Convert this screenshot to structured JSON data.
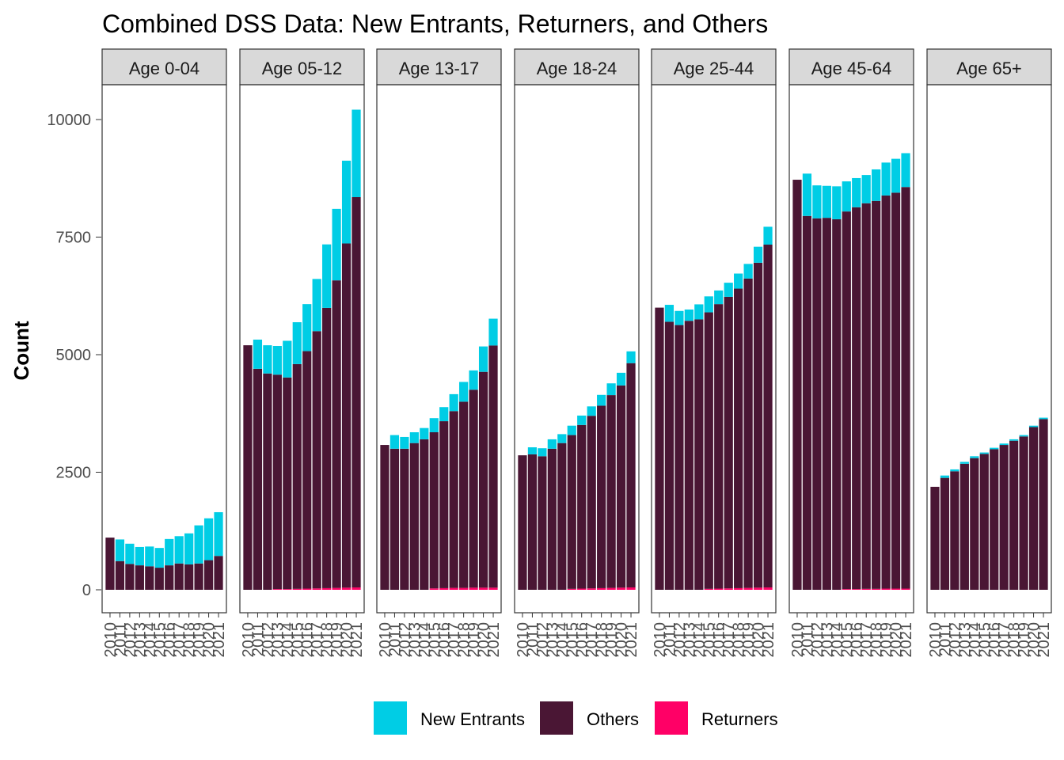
{
  "chart_data": {
    "type": "bar",
    "stacked": true,
    "title": "Combined DSS Data: New Entrants, Returners, and Others",
    "ylabel": "Count",
    "xlabel": "",
    "ylim": [
      0,
      10700
    ],
    "y_ticks": [
      0,
      2500,
      5000,
      7500,
      10000
    ],
    "x": [
      2010,
      2011,
      2012,
      2013,
      2014,
      2015,
      2016,
      2017,
      2018,
      2019,
      2020,
      2021
    ],
    "x_tick_labels": [
      "2010",
      "2011",
      "2012",
      "2013",
      "2014",
      "2015",
      "2016",
      "2017",
      "2018",
      "2019",
      "2020",
      "2021"
    ],
    "legend_position": "bottom",
    "legend": [
      {
        "name": "New Entrants",
        "color": "#00CDE5"
      },
      {
        "name": "Others",
        "color": "#4A1634"
      },
      {
        "name": "Returners",
        "color": "#FF0066"
      }
    ],
    "panels": [
      {
        "label": "Age 0-04",
        "returners": [
          0,
          0,
          0,
          0,
          0,
          0,
          0,
          0,
          0,
          0,
          0,
          0
        ],
        "others": [
          1110,
          610,
          550,
          520,
          500,
          470,
          520,
          560,
          540,
          560,
          630,
          720
        ],
        "new_entrants": [
          0,
          460,
          430,
          390,
          420,
          420,
          560,
          580,
          660,
          810,
          890,
          930
        ]
      },
      {
        "label": "Age 05-12",
        "returners": [
          0,
          0,
          0,
          15,
          15,
          20,
          25,
          30,
          35,
          40,
          45,
          50
        ],
        "others": [
          5200,
          4700,
          4600,
          4560,
          4500,
          4780,
          5050,
          5470,
          5960,
          6540,
          7320,
          8300
        ],
        "new_entrants": [
          0,
          620,
          600,
          610,
          780,
          890,
          1000,
          1110,
          1350,
          1520,
          1760,
          1860
        ]
      },
      {
        "label": "Age 13-17",
        "returners": [
          0,
          0,
          0,
          0,
          0,
          30,
          35,
          40,
          40,
          45,
          45,
          45
        ],
        "others": [
          3080,
          3000,
          3000,
          3120,
          3200,
          3320,
          3550,
          3760,
          3960,
          4210,
          4590,
          5150
        ],
        "new_entrants": [
          0,
          290,
          250,
          230,
          240,
          300,
          300,
          360,
          420,
          410,
          540,
          570
        ]
      },
      {
        "label": "Age 18-24",
        "returners": [
          0,
          0,
          0,
          0,
          0,
          20,
          25,
          30,
          35,
          40,
          45,
          50
        ],
        "others": [
          2860,
          2880,
          2840,
          3000,
          3120,
          3270,
          3480,
          3670,
          3880,
          4100,
          4300,
          4770
        ],
        "new_entrants": [
          0,
          150,
          170,
          200,
          190,
          200,
          200,
          200,
          230,
          250,
          270,
          250
        ]
      },
      {
        "label": "Age 25-44",
        "returners": [
          0,
          0,
          0,
          0,
          0,
          20,
          25,
          30,
          35,
          40,
          45,
          50
        ],
        "others": [
          6000,
          5700,
          5630,
          5720,
          5750,
          5880,
          6050,
          6200,
          6370,
          6580,
          6910,
          7290
        ],
        "new_entrants": [
          0,
          360,
          300,
          240,
          320,
          340,
          290,
          300,
          320,
          310,
          340,
          380
        ]
      },
      {
        "label": "Age 45-64",
        "returners": [
          0,
          0,
          0,
          0,
          0,
          15,
          15,
          20,
          20,
          25,
          25,
          25
        ],
        "others": [
          8720,
          7950,
          7900,
          7910,
          7880,
          8030,
          8120,
          8200,
          8250,
          8360,
          8420,
          8540
        ],
        "new_entrants": [
          0,
          900,
          700,
          680,
          700,
          640,
          620,
          600,
          670,
          700,
          720,
          720
        ]
      },
      {
        "label": "Age 65+",
        "returners": [
          0,
          0,
          0,
          0,
          0,
          0,
          0,
          0,
          0,
          0,
          0,
          0
        ],
        "others": [
          2190,
          2380,
          2520,
          2680,
          2800,
          2890,
          2990,
          3080,
          3170,
          3260,
          3460,
          3630
        ],
        "new_entrants": [
          0,
          50,
          40,
          40,
          40,
          30,
          30,
          30,
          30,
          30,
          30,
          30
        ]
      }
    ]
  }
}
